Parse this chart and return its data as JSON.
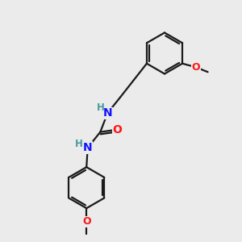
{
  "background_color": "#ebebeb",
  "bond_color": "#1a1a1a",
  "nitrogen_color": "#1414ff",
  "oxygen_color": "#ff1414",
  "h_color": "#4a9a9a",
  "line_width": 1.6,
  "figsize": [
    3.0,
    3.0
  ],
  "dpi": 100,
  "xlim": [
    0,
    10
  ],
  "ylim": [
    0,
    10
  ]
}
